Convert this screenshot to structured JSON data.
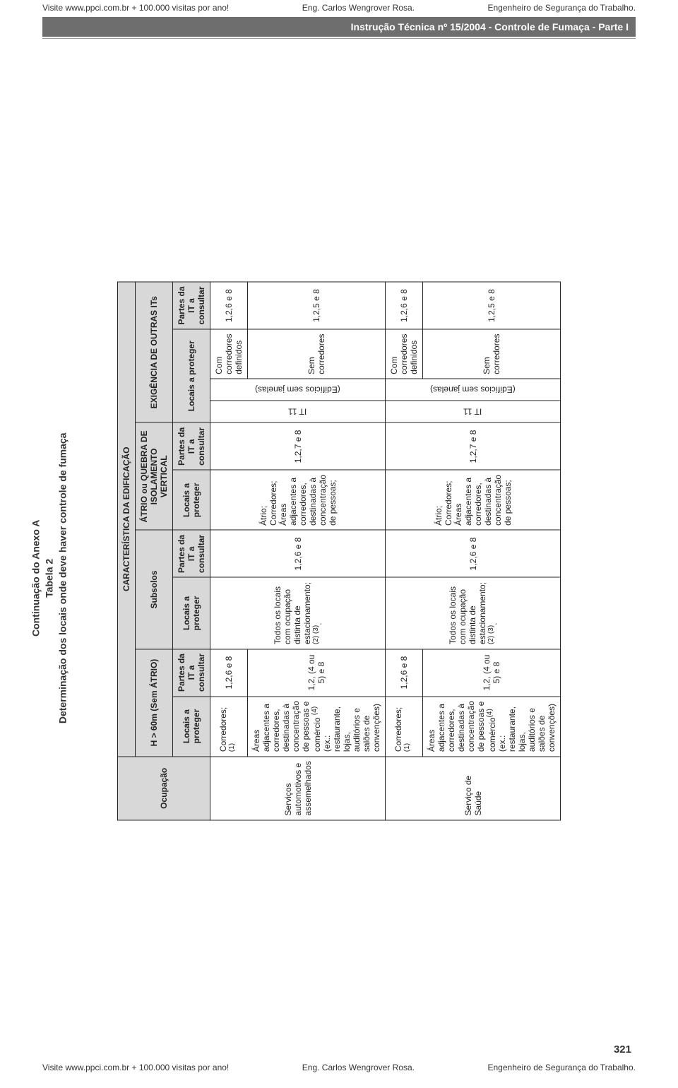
{
  "header": {
    "visit_line": "Visite www.ppci.com.br + 100.000 visitas por ano!",
    "author": "Eng. Carlos Wengrover Rosa.",
    "role": "Engenheiro de Segurança do Trabalho.",
    "bar_text": "Instrução Técnica nº 15/2004  -  Controle de Fumaça - Parte I"
  },
  "title": {
    "l1": "Continuação do Anexo A",
    "l2": "Tabela 2",
    "l3": "Determinação dos locais onde deve haver controle de fumaça"
  },
  "columns": {
    "caract": "CARACTERÍSTICA DA EDIFICAÇÃO",
    "ocupacao": "Ocupação",
    "h60": "H > 60m (Sem ÁTRIO)",
    "subsolos": "Subsolos",
    "atrio_isol": "ÁTRIO ou QUEBRA DE ISOLAMENTO VERTICAL",
    "exig_its": "EXIGÊNCIA DE OUTRAS ITs",
    "loc_prot": "Locais a proteger",
    "partes_it": "Partes da IT a consultar",
    "it11": "IT 11",
    "edif_sj": "(Edifícios sem janelas)"
  },
  "rows": {
    "r1": {
      "ocup": "Serviços automotivos e assemelhados",
      "a_l1": "Corredores; ",
      "a_sup1": "(1)",
      "a_p1": "1,2,6 e 8",
      "a_l2": "Áreas adjacentes a corredores, destinadas à concentração de pessoas e comércio ",
      "a_sup2": "(4)",
      "a_l2b": " (ex.: restaurante, lojas, auditórios e salões de convenções)",
      "a_p2": "1,2, (4 ou 5) e 8",
      "b_l": "Todos os locais com ocupação distinta de estacionamento; ",
      "b_sup1": "(2) (3)",
      "b_ldot": ".",
      "b_p": "1,2,6 e 8",
      "c_l": "Átrio;\nCorredores;\nÁreas adjacentes a corredores, destinadas à concentração de pessoas;",
      "c_p": "1,2,7 e 8",
      "d_cor1": "Com corredores definidos",
      "d_p1": "1,2,6 e 8",
      "d_cor2": "Sem corredores",
      "d_p2": "1,2,5 e 8"
    },
    "r2": {
      "ocup": "Serviço de Saúde",
      "a_l1": "Corredores; ",
      "a_sup1": "(1)",
      "a_p1": "1,2,6 e 8",
      "a_l2": "Áreas adjacentes a corredores, destinadas à concentração de pessoas e comércio",
      "a_sup2": "(4)",
      "a_l2b": " (ex.: restaurante, lojas, auditórios e salões de convenções)",
      "a_p2": "1,2, (4 ou 5) e 8",
      "b_l": "Todos os locais com ocupação distinta de estacionamento; ",
      "b_sup1": "(2) (3)",
      "b_ldot": ".",
      "b_p": "1,2,6 e 8",
      "c_l": "Átrio;\nCorredores;\nÁreas adjacentes a corredores, destinadas à concentração de pessoas;",
      "c_p": "1,2,7 e 8",
      "d_cor1": "Com corredores definidos",
      "d_p1": "1,2,6 e 8",
      "d_cor2": "Sem corredores",
      "d_p2": "1,2,5 e 8"
    }
  },
  "footer": {
    "visit": "Visite www.ppci.com.br + 100.000 visitas por ano!",
    "author": "Eng. Carlos Wengrover Rosa.",
    "role": "Engenheiro de Segurança do Trabalho.",
    "page": "321"
  },
  "style": {
    "header_bar_bg": "#6e6e6e",
    "th_bg": "#d8d8d8",
    "border": "#222222"
  }
}
